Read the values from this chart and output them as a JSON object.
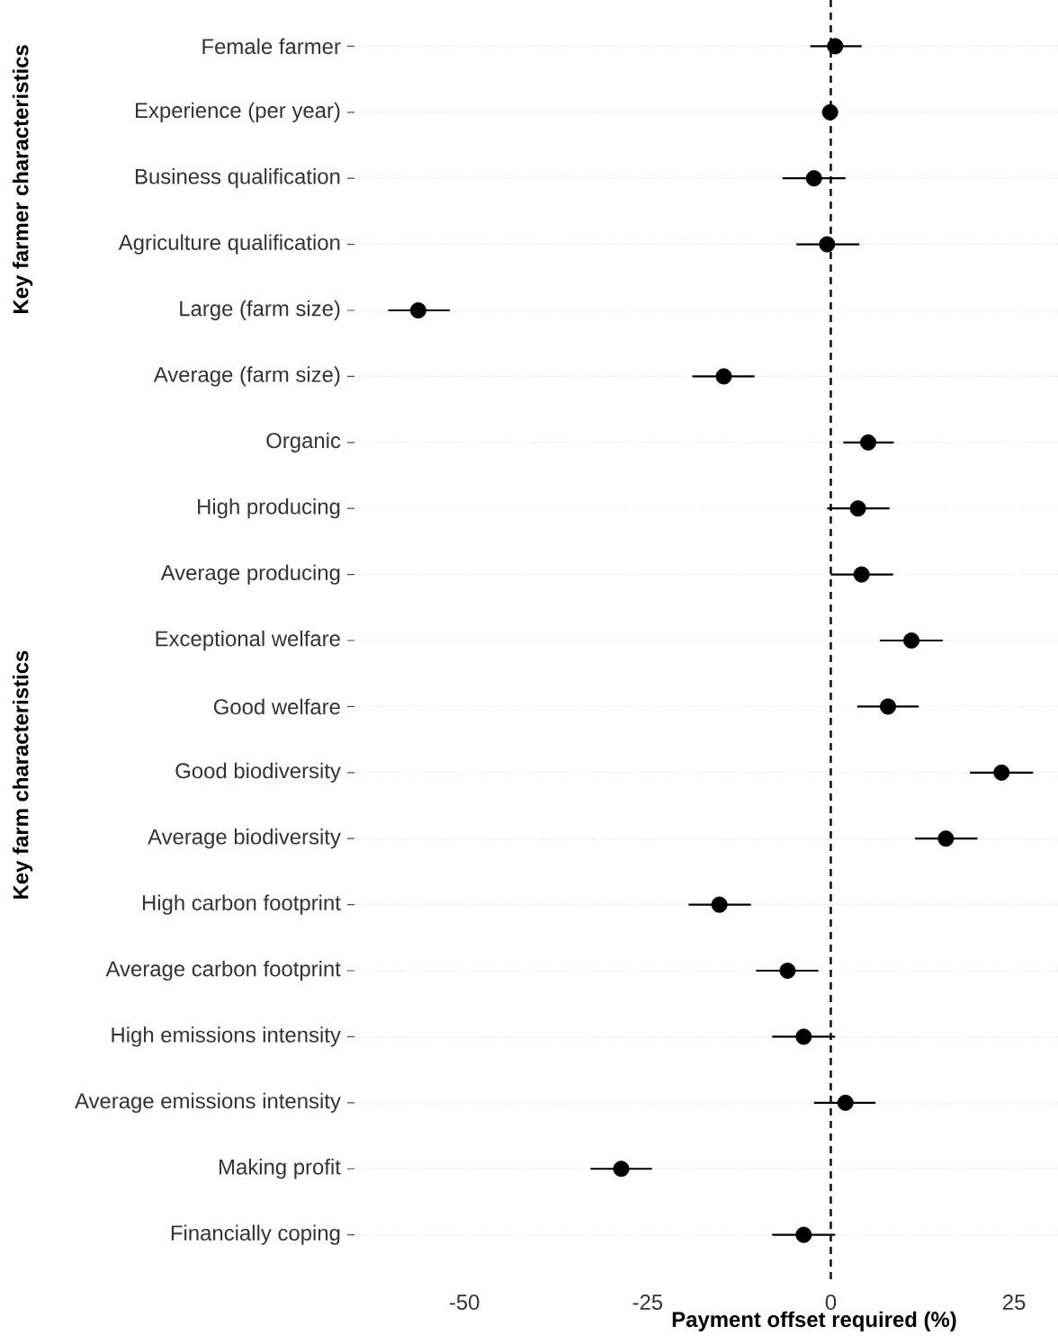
{
  "chart_data": {
    "type": "scatter",
    "orientation": "horizontal",
    "xlabel": "Payment offset required (%)",
    "categories": [
      "Female farmer",
      "Experience (per year)",
      "Business qualification",
      "Agriculture qualification",
      "Large (farm size)",
      "Average (farm size)",
      "Organic",
      "High producing",
      "Average producing",
      "Exceptional welfare",
      "Good welfare",
      "Good biodiversity",
      "Average biodiversity",
      "High carbon footprint",
      "Average carbon footprint",
      "High emissions intensity",
      "Average emissions intensity",
      "Making profit",
      "Financially coping"
    ],
    "values": [
      0.6,
      -0.1,
      -2.3,
      -0.5,
      -56.3,
      -14.6,
      5.1,
      3.7,
      4.2,
      11.0,
      7.8,
      23.3,
      15.7,
      -15.2,
      -5.9,
      -3.7,
      2.0,
      -28.6,
      -3.7
    ],
    "errors": [
      [
        -2.8,
        4.2
      ],
      null,
      [
        -6.6,
        2.0
      ],
      [
        -4.7,
        3.9
      ],
      [
        -60.4,
        -52.0
      ],
      [
        -18.9,
        -10.4
      ],
      [
        1.7,
        8.6
      ],
      [
        -0.5,
        8.0
      ],
      [
        0,
        8.5
      ],
      [
        6.7,
        15.3
      ],
      [
        3.6,
        12.0
      ],
      [
        19.0,
        27.6
      ],
      [
        11.5,
        20.0
      ],
      [
        -19.4,
        -10.9
      ],
      [
        -10.2,
        -1.7
      ],
      [
        -8.0,
        0.6
      ],
      [
        -2.3,
        6.1
      ],
      [
        -32.8,
        -24.4
      ],
      [
        -8.0,
        0.6
      ]
    ],
    "color": "#000000",
    "marker": "circle",
    "grid": "y",
    "xlim": [
      -65,
      31
    ],
    "xticks": [
      -50,
      -25,
      0,
      25
    ],
    "ref_lines": [
      {
        "axis": "x",
        "value": 0,
        "line_style": "dashed"
      }
    ],
    "annotations": [
      "Key farmer characteristics",
      "Key farm characteristics"
    ]
  }
}
